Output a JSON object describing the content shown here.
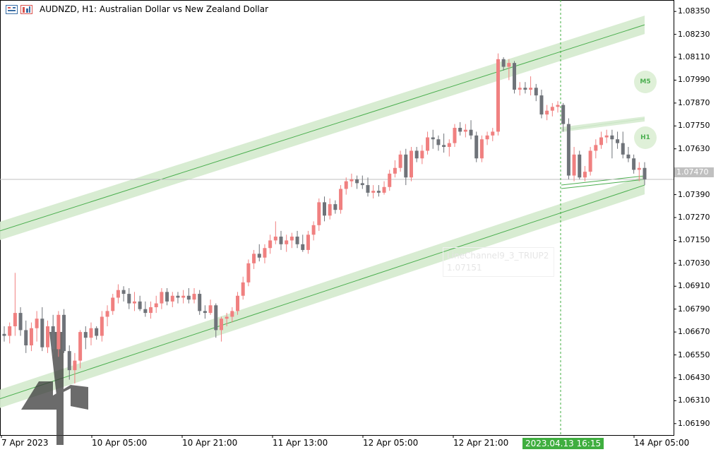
{
  "header": {
    "symbol_line": "AUDNZD, H1:  Australian Dollar vs New Zealand Dollar"
  },
  "price_axis": {
    "labels": [
      "1.08350",
      "1.08230",
      "1.08110",
      "1.07990",
      "1.07870",
      "1.07750",
      "1.07630",
      "1.07510",
      "1.07390",
      "1.07270",
      "1.07150",
      "1.07030",
      "1.06910",
      "1.06790",
      "1.06670",
      "1.06550",
      "1.06430",
      "1.06310",
      "1.06190"
    ],
    "current_price": "1.07470"
  },
  "time_axis": {
    "labels": [
      "7 Apr 2023",
      "10 Apr 05:00",
      "10 Apr 21:00",
      "11 Apr 13:00",
      "12 Apr 05:00",
      "12 Apr 21:00",
      "14 Apr 05:00"
    ],
    "crosshair_time": "2023.04.13 16:15"
  },
  "badges": {
    "m5": "M5",
    "h1": "H1"
  },
  "object_label": {
    "name": "LineChannel9_3_TRIUP2",
    "value": "1.07151"
  },
  "colors": {
    "bull": "#f08080",
    "bear": "#6f7379",
    "channel_fill": "#d6ebd0",
    "channel_line": "#4caf50",
    "bid_line": "#c0c0c0",
    "crosshair": "#3fae3f"
  },
  "chart_data": {
    "type": "candlestick",
    "title": "AUDNZD, H1:  Australian Dollar vs New Zealand Dollar",
    "ylim": [
      1.0613,
      1.0841
    ],
    "current_price": 1.0747,
    "candles": [
      {
        "o": 1.0666,
        "h": 1.067,
        "l": 1.0662,
        "c": 1.0665
      },
      {
        "o": 1.0665,
        "h": 1.0672,
        "l": 1.0661,
        "c": 1.067
      },
      {
        "o": 1.067,
        "h": 1.0698,
        "l": 1.0665,
        "c": 1.0677
      },
      {
        "o": 1.0677,
        "h": 1.068,
        "l": 1.0665,
        "c": 1.0668
      },
      {
        "o": 1.0668,
        "h": 1.0673,
        "l": 1.0656,
        "c": 1.066
      },
      {
        "o": 1.066,
        "h": 1.0672,
        "l": 1.0657,
        "c": 1.0669
      },
      {
        "o": 1.0669,
        "h": 1.0678,
        "l": 1.0662,
        "c": 1.0674
      },
      {
        "o": 1.0674,
        "h": 1.068,
        "l": 1.0657,
        "c": 1.0659
      },
      {
        "o": 1.0659,
        "h": 1.0673,
        "l": 1.0656,
        "c": 1.067
      },
      {
        "o": 1.067,
        "h": 1.0676,
        "l": 1.0655,
        "c": 1.0658
      },
      {
        "o": 1.0658,
        "h": 1.0678,
        "l": 1.0654,
        "c": 1.0676
      },
      {
        "o": 1.0676,
        "h": 1.0679,
        "l": 1.0656,
        "c": 1.0657
      },
      {
        "o": 1.0657,
        "h": 1.066,
        "l": 1.0642,
        "c": 1.0647
      },
      {
        "o": 1.0647,
        "h": 1.0656,
        "l": 1.064,
        "c": 1.0652
      },
      {
        "o": 1.0652,
        "h": 1.0668,
        "l": 1.0648,
        "c": 1.0667
      },
      {
        "o": 1.0667,
        "h": 1.067,
        "l": 1.0658,
        "c": 1.0664
      },
      {
        "o": 1.0664,
        "h": 1.0672,
        "l": 1.066,
        "c": 1.0669
      },
      {
        "o": 1.0669,
        "h": 1.067,
        "l": 1.0663,
        "c": 1.0665
      },
      {
        "o": 1.0665,
        "h": 1.0678,
        "l": 1.0662,
        "c": 1.0675
      },
      {
        "o": 1.0675,
        "h": 1.0681,
        "l": 1.067,
        "c": 1.0678
      },
      {
        "o": 1.0678,
        "h": 1.0687,
        "l": 1.0676,
        "c": 1.0685
      },
      {
        "o": 1.0685,
        "h": 1.0692,
        "l": 1.0682,
        "c": 1.0689
      },
      {
        "o": 1.0689,
        "h": 1.0691,
        "l": 1.0683,
        "c": 1.0687
      },
      {
        "o": 1.0687,
        "h": 1.069,
        "l": 1.0679,
        "c": 1.0682
      },
      {
        "o": 1.0682,
        "h": 1.0688,
        "l": 1.0678,
        "c": 1.0683
      },
      {
        "o": 1.0683,
        "h": 1.0686,
        "l": 1.0678,
        "c": 1.0679
      },
      {
        "o": 1.0679,
        "h": 1.0683,
        "l": 1.0675,
        "c": 1.0677
      },
      {
        "o": 1.0677,
        "h": 1.0683,
        "l": 1.0674,
        "c": 1.068
      },
      {
        "o": 1.068,
        "h": 1.0686,
        "l": 1.0677,
        "c": 1.0682
      },
      {
        "o": 1.0682,
        "h": 1.069,
        "l": 1.0679,
        "c": 1.0688
      },
      {
        "o": 1.0688,
        "h": 1.069,
        "l": 1.0681,
        "c": 1.0683
      },
      {
        "o": 1.0683,
        "h": 1.0688,
        "l": 1.068,
        "c": 1.0686
      },
      {
        "o": 1.0686,
        "h": 1.0688,
        "l": 1.0682,
        "c": 1.0685
      },
      {
        "o": 1.0685,
        "h": 1.0689,
        "l": 1.0682,
        "c": 1.0686
      },
      {
        "o": 1.0686,
        "h": 1.069,
        "l": 1.0682,
        "c": 1.0684
      },
      {
        "o": 1.0684,
        "h": 1.069,
        "l": 1.0682,
        "c": 1.0687
      },
      {
        "o": 1.0687,
        "h": 1.0689,
        "l": 1.0676,
        "c": 1.0678
      },
      {
        "o": 1.0678,
        "h": 1.0681,
        "l": 1.0674,
        "c": 1.0677
      },
      {
        "o": 1.0677,
        "h": 1.0684,
        "l": 1.0676,
        "c": 1.0681
      },
      {
        "o": 1.0681,
        "h": 1.0682,
        "l": 1.0664,
        "c": 1.0668
      },
      {
        "o": 1.0668,
        "h": 1.0675,
        "l": 1.0662,
        "c": 1.0674
      },
      {
        "o": 1.0674,
        "h": 1.0677,
        "l": 1.067,
        "c": 1.0675
      },
      {
        "o": 1.0675,
        "h": 1.068,
        "l": 1.0672,
        "c": 1.0678
      },
      {
        "o": 1.0678,
        "h": 1.0688,
        "l": 1.0676,
        "c": 1.0686
      },
      {
        "o": 1.0686,
        "h": 1.0696,
        "l": 1.0684,
        "c": 1.0693
      },
      {
        "o": 1.0693,
        "h": 1.0705,
        "l": 1.0691,
        "c": 1.0703
      },
      {
        "o": 1.0703,
        "h": 1.071,
        "l": 1.07,
        "c": 1.0708
      },
      {
        "o": 1.0708,
        "h": 1.0713,
        "l": 1.0704,
        "c": 1.0706
      },
      {
        "o": 1.0706,
        "h": 1.0713,
        "l": 1.0703,
        "c": 1.0711
      },
      {
        "o": 1.0711,
        "h": 1.0718,
        "l": 1.0708,
        "c": 1.0715
      },
      {
        "o": 1.0715,
        "h": 1.0725,
        "l": 1.0713,
        "c": 1.0717
      },
      {
        "o": 1.0717,
        "h": 1.072,
        "l": 1.071,
        "c": 1.0713
      },
      {
        "o": 1.0713,
        "h": 1.0718,
        "l": 1.0709,
        "c": 1.0715
      },
      {
        "o": 1.0715,
        "h": 1.0719,
        "l": 1.0711,
        "c": 1.0717
      },
      {
        "o": 1.0717,
        "h": 1.072,
        "l": 1.0711,
        "c": 1.0713
      },
      {
        "o": 1.0713,
        "h": 1.0718,
        "l": 1.0709,
        "c": 1.071
      },
      {
        "o": 1.071,
        "h": 1.072,
        "l": 1.0708,
        "c": 1.0718
      },
      {
        "o": 1.0718,
        "h": 1.0725,
        "l": 1.0715,
        "c": 1.0723
      },
      {
        "o": 1.0723,
        "h": 1.0737,
        "l": 1.072,
        "c": 1.0735
      },
      {
        "o": 1.0735,
        "h": 1.0738,
        "l": 1.0725,
        "c": 1.0728
      },
      {
        "o": 1.0728,
        "h": 1.0737,
        "l": 1.0726,
        "c": 1.0734
      },
      {
        "o": 1.0734,
        "h": 1.0736,
        "l": 1.0729,
        "c": 1.0731
      },
      {
        "o": 1.0731,
        "h": 1.0744,
        "l": 1.0729,
        "c": 1.0742
      },
      {
        "o": 1.0742,
        "h": 1.0748,
        "l": 1.0739,
        "c": 1.0746
      },
      {
        "o": 1.0746,
        "h": 1.075,
        "l": 1.0743,
        "c": 1.0747
      },
      {
        "o": 1.0747,
        "h": 1.0749,
        "l": 1.0742,
        "c": 1.0745
      },
      {
        "o": 1.0745,
        "h": 1.0749,
        "l": 1.0742,
        "c": 1.0744
      },
      {
        "o": 1.0744,
        "h": 1.0748,
        "l": 1.0738,
        "c": 1.074
      },
      {
        "o": 1.074,
        "h": 1.0744,
        "l": 1.0737,
        "c": 1.0741
      },
      {
        "o": 1.0741,
        "h": 1.0744,
        "l": 1.0738,
        "c": 1.074
      },
      {
        "o": 1.074,
        "h": 1.0746,
        "l": 1.0739,
        "c": 1.0743
      },
      {
        "o": 1.0743,
        "h": 1.0752,
        "l": 1.0741,
        "c": 1.075
      },
      {
        "o": 1.075,
        "h": 1.0757,
        "l": 1.0748,
        "c": 1.0753
      },
      {
        "o": 1.0753,
        "h": 1.0762,
        "l": 1.0751,
        "c": 1.076
      },
      {
        "o": 1.076,
        "h": 1.0763,
        "l": 1.0744,
        "c": 1.0748
      },
      {
        "o": 1.0748,
        "h": 1.0764,
        "l": 1.0746,
        "c": 1.0762
      },
      {
        "o": 1.0762,
        "h": 1.0764,
        "l": 1.0756,
        "c": 1.0758
      },
      {
        "o": 1.0758,
        "h": 1.0765,
        "l": 1.0755,
        "c": 1.0762
      },
      {
        "o": 1.0762,
        "h": 1.0772,
        "l": 1.076,
        "c": 1.0769
      },
      {
        "o": 1.0769,
        "h": 1.0773,
        "l": 1.0763,
        "c": 1.0768
      },
      {
        "o": 1.0768,
        "h": 1.077,
        "l": 1.0762,
        "c": 1.0765
      },
      {
        "o": 1.0765,
        "h": 1.0771,
        "l": 1.0761,
        "c": 1.0764
      },
      {
        "o": 1.0764,
        "h": 1.0768,
        "l": 1.0759,
        "c": 1.0766
      },
      {
        "o": 1.0766,
        "h": 1.0776,
        "l": 1.0764,
        "c": 1.0774
      },
      {
        "o": 1.0774,
        "h": 1.0777,
        "l": 1.077,
        "c": 1.0772
      },
      {
        "o": 1.0772,
        "h": 1.0776,
        "l": 1.0769,
        "c": 1.0773
      },
      {
        "o": 1.0773,
        "h": 1.0778,
        "l": 1.0768,
        "c": 1.077
      },
      {
        "o": 1.077,
        "h": 1.0772,
        "l": 1.0756,
        "c": 1.0758
      },
      {
        "o": 1.0758,
        "h": 1.077,
        "l": 1.0756,
        "c": 1.0768
      },
      {
        "o": 1.0768,
        "h": 1.0772,
        "l": 1.0765,
        "c": 1.077
      },
      {
        "o": 1.077,
        "h": 1.0774,
        "l": 1.0767,
        "c": 1.0772
      },
      {
        "o": 1.0772,
        "h": 1.0813,
        "l": 1.077,
        "c": 1.081
      },
      {
        "o": 1.081,
        "h": 1.0811,
        "l": 1.0804,
        "c": 1.0806
      },
      {
        "o": 1.0806,
        "h": 1.081,
        "l": 1.0799,
        "c": 1.0808
      },
      {
        "o": 1.0808,
        "h": 1.0809,
        "l": 1.0792,
        "c": 1.0794
      },
      {
        "o": 1.0794,
        "h": 1.0798,
        "l": 1.0791,
        "c": 1.0795
      },
      {
        "o": 1.0795,
        "h": 1.0798,
        "l": 1.0792,
        "c": 1.0794
      },
      {
        "o": 1.0794,
        "h": 1.0801,
        "l": 1.0791,
        "c": 1.0795
      },
      {
        "o": 1.0795,
        "h": 1.0797,
        "l": 1.0788,
        "c": 1.0791
      },
      {
        "o": 1.0791,
        "h": 1.0794,
        "l": 1.0779,
        "c": 1.0781
      },
      {
        "o": 1.0781,
        "h": 1.0786,
        "l": 1.0778,
        "c": 1.0783
      },
      {
        "o": 1.0783,
        "h": 1.0787,
        "l": 1.078,
        "c": 1.0785
      },
      {
        "o": 1.0785,
        "h": 1.0788,
        "l": 1.0782,
        "c": 1.0786
      },
      {
        "o": 1.0786,
        "h": 1.0787,
        "l": 1.0772,
        "c": 1.0776
      },
      {
        "o": 1.0776,
        "h": 1.0779,
        "l": 1.0747,
        "c": 1.0749
      },
      {
        "o": 1.0749,
        "h": 1.0764,
        "l": 1.0746,
        "c": 1.076
      },
      {
        "o": 1.076,
        "h": 1.0762,
        "l": 1.0747,
        "c": 1.0748
      },
      {
        "o": 1.0748,
        "h": 1.0754,
        "l": 1.0746,
        "c": 1.0751
      },
      {
        "o": 1.0751,
        "h": 1.0764,
        "l": 1.0749,
        "c": 1.0762
      },
      {
        "o": 1.0762,
        "h": 1.0768,
        "l": 1.0758,
        "c": 1.0765
      },
      {
        "o": 1.0765,
        "h": 1.0772,
        "l": 1.0763,
        "c": 1.0769
      },
      {
        "o": 1.0769,
        "h": 1.0773,
        "l": 1.0766,
        "c": 1.077
      },
      {
        "o": 1.077,
        "h": 1.0773,
        "l": 1.0758,
        "c": 1.0768
      },
      {
        "o": 1.0768,
        "h": 1.0772,
        "l": 1.0763,
        "c": 1.0766
      },
      {
        "o": 1.0766,
        "h": 1.0772,
        "l": 1.0758,
        "c": 1.076
      },
      {
        "o": 1.076,
        "h": 1.0764,
        "l": 1.0756,
        "c": 1.0758
      },
      {
        "o": 1.0758,
        "h": 1.076,
        "l": 1.075,
        "c": 1.0752
      },
      {
        "o": 1.0752,
        "h": 1.0756,
        "l": 1.0746,
        "c": 1.0753
      },
      {
        "o": 1.0753,
        "h": 1.0756,
        "l": 1.0744,
        "c": 1.0747
      }
    ],
    "channels": [
      {
        "x0": 0,
        "y0": 1.072,
        "x1": 913,
        "y1": 1.0828
      },
      {
        "x0": 0,
        "y0": 1.0632,
        "x1": 913,
        "y1": 1.0744
      }
    ]
  }
}
